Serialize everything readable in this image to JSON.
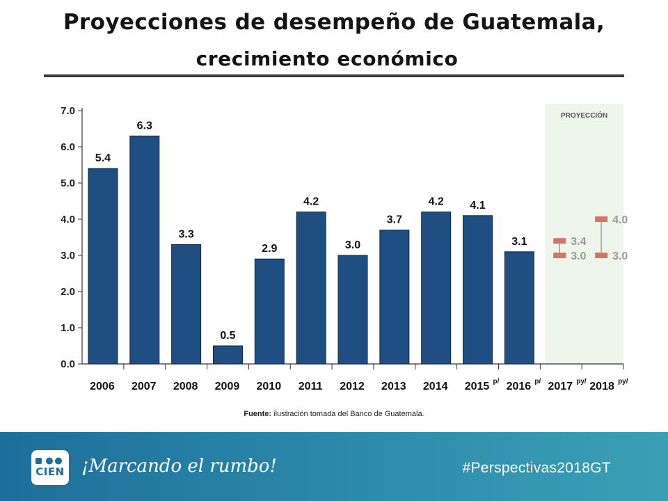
{
  "slide": {
    "title_line1": "Proyecciones de desempeño de Guatemala,",
    "title_line2": "crecimiento económico",
    "source_label": "Fuente:",
    "source_text": "ilustración tomada del Banco de Guatemala.",
    "slogan": "¡Marcando el rumbo!",
    "hashtag": "#Perspectivas2018GT",
    "logo_text": "CIEN"
  },
  "chart_data": {
    "type": "bar",
    "title": "",
    "xlabel": "",
    "ylabel": "",
    "ylim": [
      0,
      7
    ],
    "y_ticks": [
      "0.0",
      "1.0",
      "2.0",
      "3.0",
      "4.0",
      "5.0",
      "6.0",
      "7.0"
    ],
    "categories": [
      "2006",
      "2007",
      "2008",
      "2009",
      "2010",
      "2011",
      "2012",
      "2013",
      "2014",
      "2015",
      "2016",
      "2017",
      "2018"
    ],
    "category_superscripts": [
      "",
      "",
      "",
      "",
      "",
      "",
      "",
      "",
      "",
      "p/",
      "p/",
      "py/",
      "py/"
    ],
    "values": [
      5.4,
      6.3,
      3.3,
      0.5,
      2.9,
      4.2,
      3.0,
      3.7,
      4.2,
      4.1,
      3.1,
      null,
      null
    ],
    "value_labels": [
      "5.4",
      "6.3",
      "3.3",
      "0.5",
      "2.9",
      "4.2",
      "3.0",
      "3.7",
      "4.2",
      "4.1",
      "3.1",
      "",
      ""
    ],
    "projection_label": "PROYECCIÓN",
    "projections": [
      {
        "category": "2017",
        "low": 3.0,
        "high": 3.4,
        "low_label": "3.0",
        "high_label": "3.4"
      },
      {
        "category": "2018",
        "low": 3.0,
        "high": 4.0,
        "low_label": "3.0",
        "high_label": "4.0"
      }
    ],
    "colors": {
      "bar": "#1f4e82",
      "bar_edge": "#10263f",
      "projection_marker": "#d37668",
      "projection_bg": "#eef5ea",
      "projection_text": "#9a9a9a"
    }
  }
}
